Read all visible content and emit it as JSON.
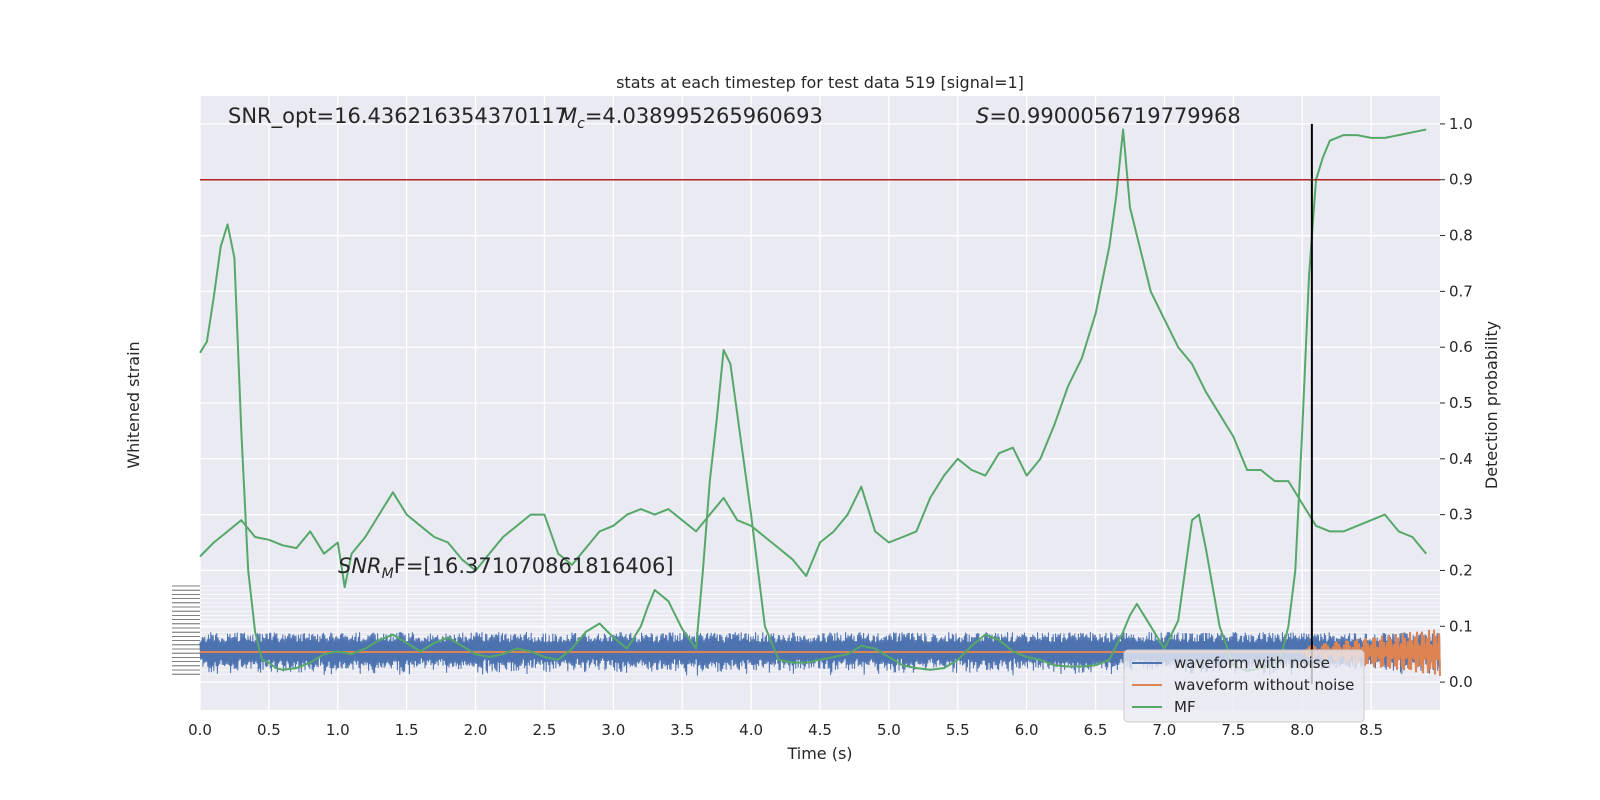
{
  "chart_data": {
    "type": "line",
    "title": "stats at each timestep for test data 519 [signal=1]",
    "xlabel": "Time (s)",
    "ylabel_left": "Whitened strain",
    "ylabel_right": "Detection probability",
    "xlim": [
      0,
      9.0
    ],
    "ylim_right": [
      -0.05,
      1.05
    ],
    "x_ticks": [
      "0.0",
      "0.5",
      "1.0",
      "1.5",
      "2.0",
      "2.5",
      "3.0",
      "3.5",
      "4.0",
      "4.5",
      "5.0",
      "5.5",
      "6.0",
      "6.5",
      "7.0",
      "7.5",
      "8.0",
      "8.5"
    ],
    "y_ticks_right": [
      "0.0",
      "0.1",
      "0.2",
      "0.3",
      "0.4",
      "0.5",
      "0.6",
      "0.7",
      "0.8",
      "0.9",
      "1.0"
    ],
    "grid": true,
    "legend_position": "bottom-right",
    "annotations": {
      "snr_opt": "SNR_opt=16.436216354370117",
      "mc_value": "=4.038995265960693",
      "s_value": "=0.9900056719779968",
      "snr_mf_value": "F=[16.371070861816406]"
    },
    "threshold": 0.9,
    "vertical_marker_x": 8.07,
    "series": [
      {
        "name": "waveform with noise",
        "color": "#4c72b0"
      },
      {
        "name": "waveform without noise",
        "color": "#dd8452"
      },
      {
        "name": "MF",
        "color": "#55a868",
        "x": [
          0.0,
          0.05,
          0.1,
          0.15,
          0.2,
          0.25,
          0.3,
          0.35,
          0.4,
          0.45,
          0.5,
          0.55,
          0.6,
          0.7,
          0.8,
          0.9,
          1.0,
          1.1,
          1.2,
          1.3,
          1.4,
          1.5,
          1.6,
          1.7,
          1.8,
          1.9,
          2.0,
          2.1,
          2.2,
          2.3,
          2.4,
          2.5,
          2.6,
          2.7,
          2.8,
          2.9,
          3.0,
          3.1,
          3.2,
          3.25,
          3.3,
          3.4,
          3.5,
          3.6,
          3.65,
          3.7,
          3.75,
          3.8,
          3.85,
          3.9,
          4.0,
          4.1,
          4.2,
          4.3,
          4.4,
          4.5,
          4.6,
          4.7,
          4.8,
          4.9,
          5.0,
          5.1,
          5.2,
          5.3,
          5.4,
          5.5,
          5.6,
          5.7,
          5.8,
          5.9,
          6.0,
          6.1,
          6.2,
          6.3,
          6.4,
          6.5,
          6.6,
          6.7,
          6.75,
          6.8,
          6.9,
          7.0,
          7.1,
          7.15,
          7.2,
          7.25,
          7.3,
          7.4,
          7.5,
          7.6,
          7.7,
          7.8,
          7.85,
          7.9,
          7.95,
          8.0,
          8.05,
          8.1,
          8.15,
          8.2,
          8.3,
          8.4,
          8.5,
          8.6,
          8.7,
          8.8,
          8.9
        ],
        "values": [
          0.59,
          0.61,
          0.69,
          0.78,
          0.82,
          0.76,
          0.45,
          0.2,
          0.09,
          0.04,
          0.035,
          0.025,
          0.022,
          0.025,
          0.035,
          0.05,
          0.055,
          0.05,
          0.06,
          0.075,
          0.085,
          0.07,
          0.055,
          0.07,
          0.08,
          0.065,
          0.05,
          0.045,
          0.05,
          0.06,
          0.055,
          0.045,
          0.04,
          0.06,
          0.09,
          0.105,
          0.08,
          0.06,
          0.1,
          0.135,
          0.165,
          0.145,
          0.095,
          0.06,
          0.2,
          0.36,
          0.47,
          0.595,
          0.57,
          0.48,
          0.3,
          0.1,
          0.04,
          0.035,
          0.035,
          0.04,
          0.045,
          0.05,
          0.065,
          0.06,
          0.045,
          0.03,
          0.025,
          0.022,
          0.025,
          0.04,
          0.065,
          0.085,
          0.075,
          0.055,
          0.045,
          0.04,
          0.03,
          0.028,
          0.028,
          0.03,
          0.04,
          0.09,
          0.12,
          0.14,
          0.1,
          0.06,
          0.11,
          0.2,
          0.29,
          0.3,
          0.24,
          0.1,
          0.03,
          0.02,
          0.025,
          0.035,
          0.05,
          0.1,
          0.2,
          0.45,
          0.73,
          0.9,
          0.94,
          0.97,
          0.98,
          0.98,
          0.975,
          0.975,
          0.98,
          0.985,
          0.99
        ]
      },
      {
        "name": "",
        "color": "#55a868",
        "x": [
          0.0,
          0.1,
          0.2,
          0.3,
          0.4,
          0.5,
          0.6,
          0.7,
          0.8,
          0.9,
          1.0,
          1.05,
          1.1,
          1.2,
          1.3,
          1.4,
          1.5,
          1.6,
          1.7,
          1.8,
          1.9,
          2.0,
          2.1,
          2.2,
          2.3,
          2.4,
          2.5,
          2.6,
          2.7,
          2.8,
          2.9,
          3.0,
          3.1,
          3.2,
          3.3,
          3.4,
          3.5,
          3.6,
          3.7,
          3.8,
          3.9,
          4.0,
          4.1,
          4.2,
          4.3,
          4.4,
          4.5,
          4.6,
          4.7,
          4.8,
          4.9,
          5.0,
          5.1,
          5.2,
          5.3,
          5.4,
          5.5,
          5.6,
          5.7,
          5.8,
          5.9,
          6.0,
          6.1,
          6.2,
          6.3,
          6.4,
          6.5,
          6.6,
          6.65,
          6.7,
          6.75,
          6.8,
          6.9,
          7.0,
          7.1,
          7.2,
          7.3,
          7.4,
          7.5,
          7.6,
          7.7,
          7.8,
          7.9,
          8.0,
          8.1,
          8.2,
          8.3,
          8.4,
          8.5,
          8.6,
          8.7,
          8.8,
          8.9
        ],
        "values": [
          0.225,
          0.25,
          0.27,
          0.29,
          0.26,
          0.255,
          0.245,
          0.24,
          0.27,
          0.23,
          0.25,
          0.17,
          0.23,
          0.26,
          0.3,
          0.34,
          0.3,
          0.28,
          0.26,
          0.25,
          0.22,
          0.2,
          0.23,
          0.26,
          0.28,
          0.3,
          0.3,
          0.23,
          0.21,
          0.24,
          0.27,
          0.28,
          0.3,
          0.31,
          0.3,
          0.31,
          0.29,
          0.27,
          0.3,
          0.33,
          0.29,
          0.28,
          0.26,
          0.24,
          0.22,
          0.19,
          0.25,
          0.27,
          0.3,
          0.35,
          0.27,
          0.25,
          0.26,
          0.27,
          0.33,
          0.37,
          0.4,
          0.38,
          0.37,
          0.41,
          0.42,
          0.37,
          0.4,
          0.46,
          0.53,
          0.58,
          0.66,
          0.78,
          0.87,
          0.99,
          0.85,
          0.8,
          0.7,
          0.65,
          0.6,
          0.57,
          0.52,
          0.48,
          0.44,
          0.38,
          0.38,
          0.36,
          0.36,
          0.32,
          0.28,
          0.27,
          0.27,
          0.28,
          0.29,
          0.3,
          0.27,
          0.26,
          0.23
        ]
      }
    ]
  }
}
